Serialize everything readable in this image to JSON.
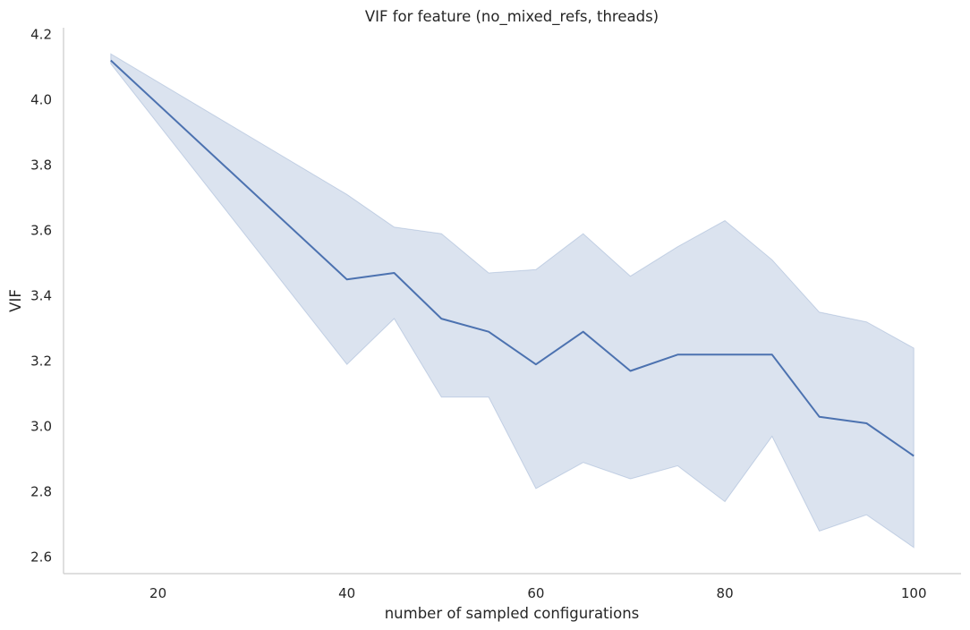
{
  "chart_data": {
    "type": "line",
    "title": "VIF for feature (no_mixed_refs, threads)",
    "xlabel": "number of sampled configurations",
    "ylabel": "VIF",
    "xlim": [
      10,
      105
    ],
    "ylim": [
      2.55,
      4.22
    ],
    "xticks": [
      20,
      40,
      60,
      80,
      100
    ],
    "xtick_labels": [
      "20",
      "40",
      "60",
      "80",
      "100"
    ],
    "yticks": [
      2.6,
      2.8,
      3.0,
      3.2,
      3.4,
      3.6,
      3.8,
      4.0,
      4.2
    ],
    "ytick_labels": [
      "2.6",
      "2.8",
      "3.0",
      "3.2",
      "3.4",
      "3.6",
      "3.8",
      "4.0",
      "4.2"
    ],
    "grid": false,
    "x": [
      15,
      40,
      45,
      50,
      55,
      60,
      65,
      70,
      75,
      80,
      85,
      90,
      95,
      100
    ],
    "series": [
      {
        "values": [
          4.12,
          3.45,
          3.47,
          3.33,
          3.29,
          3.19,
          3.29,
          3.17,
          3.22,
          3.22,
          3.22,
          3.03,
          3.01,
          2.91
        ],
        "ci_upper": [
          4.14,
          3.71,
          3.61,
          3.59,
          3.47,
          3.48,
          3.59,
          3.46,
          3.55,
          3.63,
          3.51,
          3.35,
          3.32,
          3.24
        ],
        "ci_lower": [
          4.11,
          3.19,
          3.33,
          3.09,
          3.09,
          2.81,
          2.89,
          2.84,
          2.88,
          2.77,
          2.97,
          2.68,
          2.73,
          2.63
        ],
        "color": "#4c72b0",
        "band_color": "#4c72b0"
      }
    ]
  }
}
